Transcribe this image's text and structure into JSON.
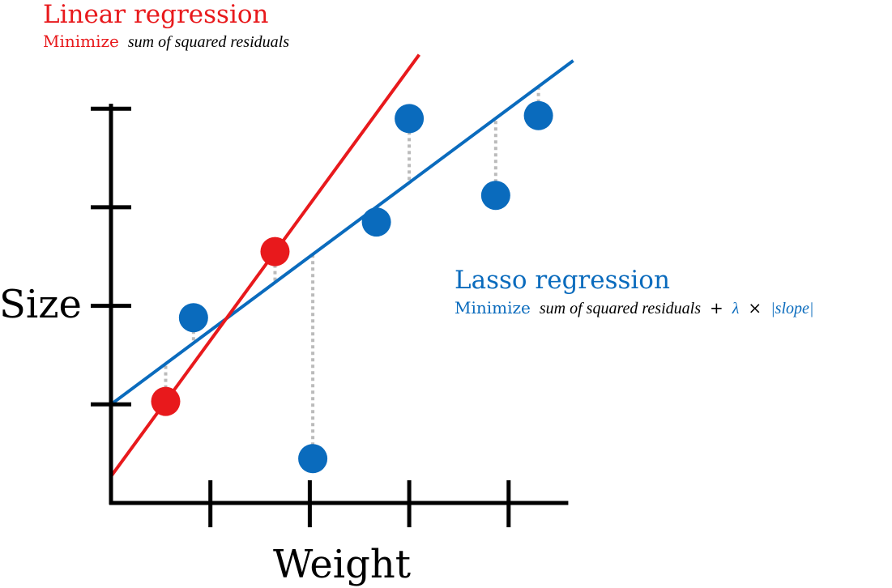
{
  "colors": {
    "linear": "#e8191c",
    "lasso": "#0a6bbd",
    "axis": "#000000",
    "residual": "#bbbbbb"
  },
  "linear": {
    "title": "Linear regression",
    "sub_prefix": "Minimize",
    "sub_formula": "sum of squared residuals"
  },
  "lasso": {
    "title": "Lasso regression",
    "sub_prefix": "Minimize",
    "sub_formula": "sum of squared residuals",
    "sub_plus": "+",
    "sub_lambda": "λ",
    "sub_times": "×",
    "sub_abs": "|slope|"
  },
  "chart_data": {
    "type": "scatter",
    "xlabel": "Weight",
    "ylabel": "Size",
    "xlim": [
      0,
      4.6
    ],
    "ylim": [
      -0.6,
      4.5
    ],
    "x_ticks": [
      1,
      2,
      3,
      4
    ],
    "y_ticks": [
      1,
      2,
      3,
      4
    ],
    "series": [
      {
        "name": "Linear regression",
        "points": [
          [
            0.55,
            1.03
          ],
          [
            1.65,
            2.55
          ]
        ],
        "line": {
          "slope": 1.38,
          "intercept": 0.27,
          "x_range": [
            0,
            3.1
          ]
        }
      },
      {
        "name": "Lasso regression",
        "points": [
          [
            0.83,
            1.88
          ],
          [
            2.03,
            0.45
          ],
          [
            2.67,
            2.85
          ],
          [
            3.0,
            3.9
          ],
          [
            3.87,
            3.12
          ],
          [
            4.3,
            3.93
          ]
        ],
        "line": {
          "slope": 0.75,
          "intercept": 1.0,
          "x_range": [
            0,
            4.65
          ]
        }
      }
    ]
  }
}
